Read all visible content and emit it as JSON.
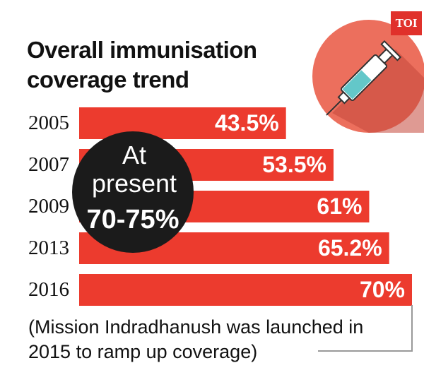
{
  "chart_data": {
    "type": "bar",
    "orientation": "horizontal",
    "title": "Overall immunisation coverage trend",
    "categories": [
      "2005",
      "2007",
      "2009",
      "2013",
      "2016"
    ],
    "values": [
      43.5,
      53.5,
      61,
      65.2,
      70
    ],
    "value_labels": [
      "43.5%",
      "53.5%",
      "61%",
      "65.2%",
      "70%"
    ],
    "color": "#ec3b2e",
    "annotation": "At present",
    "annotation_value": "70-75%",
    "note": "(Mission Indradhanush was launched in 2015 to ramp up coverage)",
    "logo": "TOI"
  }
}
